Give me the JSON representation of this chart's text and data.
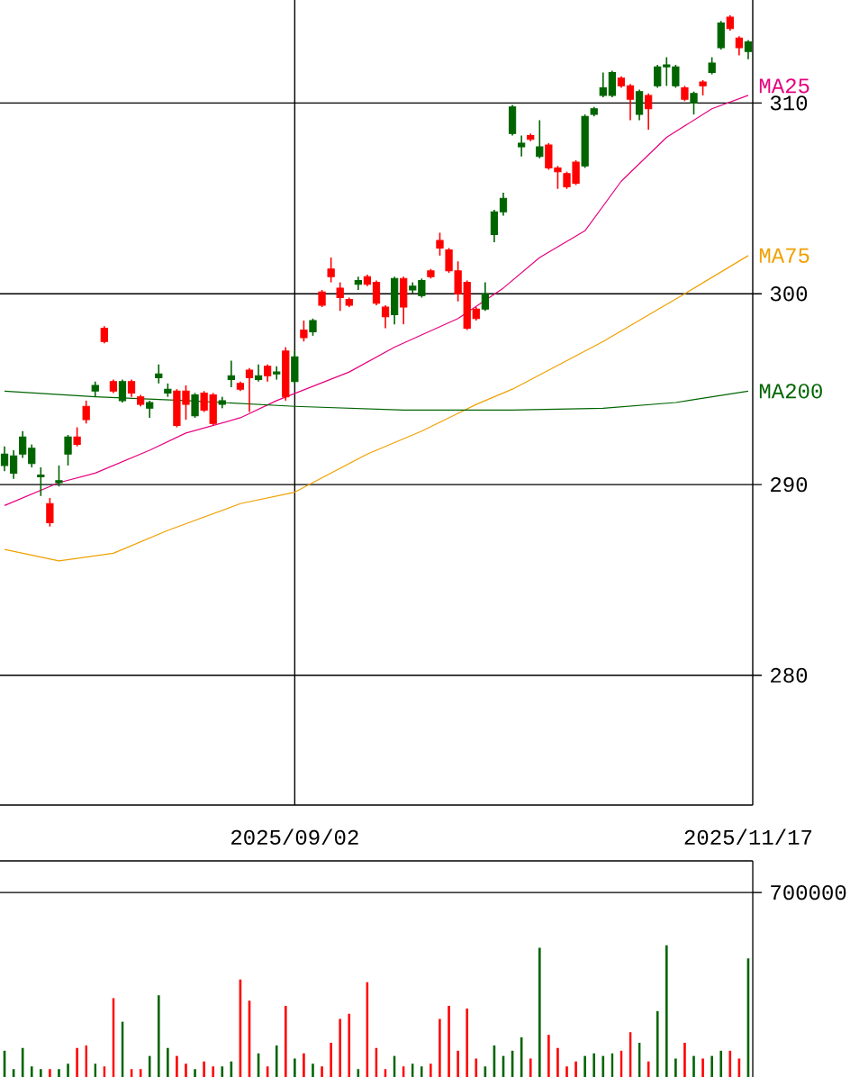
{
  "chart_data": [
    {
      "type": "candlestick",
      "categories": [
        null,
        null,
        null,
        null,
        null,
        null,
        null,
        null,
        null,
        null,
        null,
        null,
        null,
        null,
        null,
        null,
        null,
        null,
        null,
        null,
        null,
        null,
        null,
        null,
        null,
        null,
        null,
        null,
        null,
        null,
        null,
        null,
        "2025/09/02",
        null,
        null,
        null,
        null,
        null,
        null,
        null,
        null,
        null,
        null,
        null,
        null,
        null,
        null,
        null,
        null,
        null,
        null,
        null,
        null,
        null,
        null,
        null,
        null,
        null,
        null,
        null,
        null,
        null,
        null,
        null,
        null,
        null,
        null,
        null,
        null,
        null,
        null,
        null,
        null,
        null,
        null,
        null,
        null,
        null,
        null,
        null,
        null,
        null,
        "2025/11/17"
      ],
      "ohlc": [
        [
          291.6,
          292.0,
          290.7,
          291.0
        ],
        [
          291.5,
          291.8,
          290.3,
          290.6
        ],
        [
          292.5,
          292.8,
          291.4,
          291.6
        ],
        [
          291.9,
          292.1,
          290.9,
          291.1
        ],
        [
          290.5,
          290.9,
          289.4,
          290.4
        ],
        [
          288.0,
          289.3,
          287.8,
          289.0
        ],
        [
          290.2,
          291.0,
          289.9,
          290.1
        ],
        [
          292.5,
          292.6,
          291.0,
          291.6
        ],
        [
          292.1,
          293.0,
          292.0,
          292.5
        ],
        [
          293.4,
          294.4,
          293.2,
          294.1
        ],
        [
          295.2,
          295.4,
          294.6,
          294.9
        ],
        [
          297.5,
          298.3,
          297.4,
          298.2
        ],
        [
          294.9,
          295.5,
          294.8,
          295.4
        ],
        [
          295.4,
          295.5,
          294.3,
          294.4
        ],
        [
          294.8,
          295.5,
          294.6,
          295.4
        ],
        [
          294.2,
          294.7,
          294.1,
          294.6
        ],
        [
          294.3,
          294.4,
          293.5,
          294.0
        ],
        [
          295.8,
          296.3,
          295.3,
          295.6
        ],
        [
          295.0,
          295.3,
          294.6,
          294.8
        ],
        [
          293.1,
          295.0,
          293.0,
          294.9
        ],
        [
          294.2,
          295.2,
          293.4,
          294.9
        ],
        [
          294.7,
          294.8,
          293.5,
          293.6
        ],
        [
          293.9,
          294.9,
          293.8,
          294.8
        ],
        [
          293.2,
          294.8,
          293.1,
          294.7
        ],
        [
          294.4,
          294.6,
          294.0,
          294.2
        ],
        [
          295.7,
          296.5,
          295.1,
          295.5
        ],
        [
          295.0,
          295.4,
          294.9,
          295.3
        ],
        [
          295.6,
          296.1,
          293.8,
          296.0
        ],
        [
          295.7,
          296.3,
          295.4,
          295.5
        ],
        [
          295.7,
          296.3,
          295.4,
          296.2
        ],
        [
          295.9,
          296.2,
          295.5,
          295.8
        ],
        [
          294.6,
          297.2,
          294.4,
          297.0
        ],
        [
          296.7,
          297.0,
          295.3,
          295.4
        ],
        [
          297.7,
          298.6,
          297.5,
          298.1
        ],
        [
          298.6,
          298.7,
          297.8,
          298.0
        ],
        [
          299.4,
          300.2,
          299.3,
          300.1
        ],
        [
          300.9,
          301.9,
          300.6,
          301.3
        ],
        [
          299.8,
          300.6,
          299.1,
          300.3
        ],
        [
          299.4,
          299.8,
          299.3,
          299.7
        ],
        [
          300.7,
          300.9,
          300.2,
          300.5
        ],
        [
          300.5,
          301.0,
          300.4,
          300.9
        ],
        [
          299.5,
          300.7,
          299.4,
          300.6
        ],
        [
          298.8,
          299.4,
          298.2,
          299.3
        ],
        [
          300.8,
          300.9,
          298.4,
          298.9
        ],
        [
          299.3,
          300.9,
          298.4,
          300.8
        ],
        [
          300.4,
          300.6,
          300.0,
          300.2
        ],
        [
          300.7,
          300.8,
          299.8,
          299.9
        ],
        [
          300.9,
          301.3,
          300.8,
          301.2
        ],
        [
          302.4,
          303.2,
          302.0,
          302.8
        ],
        [
          301.2,
          302.4,
          301.1,
          302.3
        ],
        [
          300.0,
          301.7,
          299.6,
          301.2
        ],
        [
          298.2,
          300.7,
          298.1,
          300.6
        ],
        [
          298.7,
          299.3,
          298.6,
          299.2
        ],
        [
          300.0,
          300.6,
          299.1,
          299.2
        ],
        [
          304.3,
          304.4,
          302.7,
          303.1
        ],
        [
          305.0,
          305.3,
          304.1,
          304.3
        ],
        [
          309.8,
          309.9,
          308.3,
          308.4
        ],
        [
          307.9,
          308.3,
          307.2,
          307.7
        ],
        [
          308.1,
          308.4,
          308.0,
          308.3
        ],
        [
          307.7,
          309.1,
          307.1,
          307.2
        ],
        [
          306.6,
          307.9,
          306.5,
          307.8
        ],
        [
          306.4,
          306.7,
          305.5,
          306.6
        ],
        [
          305.6,
          306.4,
          305.5,
          306.3
        ],
        [
          305.8,
          307.0,
          305.7,
          306.9
        ],
        [
          309.3,
          309.4,
          306.6,
          306.7
        ],
        [
          309.7,
          309.8,
          309.3,
          309.4
        ],
        [
          310.8,
          311.6,
          310.3,
          310.4
        ],
        [
          311.6,
          311.7,
          310.3,
          310.4
        ],
        [
          310.9,
          311.4,
          310.8,
          311.3
        ],
        [
          310.2,
          311.0,
          309.1,
          310.9
        ],
        [
          310.6,
          310.7,
          309.1,
          309.4
        ],
        [
          309.7,
          310.5,
          308.6,
          310.4
        ],
        [
          311.9,
          312.0,
          310.8,
          310.9
        ],
        [
          312.0,
          312.4,
          310.9,
          311.9
        ],
        [
          311.9,
          312.0,
          310.8,
          310.9
        ],
        [
          310.2,
          310.9,
          310.1,
          310.8
        ],
        [
          310.5,
          310.6,
          309.4,
          310.0
        ],
        [
          310.9,
          311.2,
          310.4,
          311.1
        ],
        [
          312.1,
          312.4,
          311.5,
          311.6
        ],
        [
          314.2,
          314.3,
          312.8,
          312.9
        ],
        [
          313.9,
          314.6,
          313.8,
          314.5
        ],
        [
          312.9,
          313.5,
          312.5,
          313.4
        ],
        [
          313.2,
          313.3,
          312.3,
          312.7
        ]
      ],
      "colors": [
        "#006400",
        "#006400",
        "#006400",
        "#006400",
        "#006400",
        "#ff0000",
        "#006400",
        "#006400",
        "#ff0000",
        "#ff0000",
        "#006400",
        "#ff0000",
        "#ff0000",
        "#006400",
        "#ff0000",
        "#ff0000",
        "#006400",
        "#006400",
        "#006400",
        "#ff0000",
        "#ff0000",
        "#006400",
        "#ff0000",
        "#ff0000",
        "#006400",
        "#006400",
        "#ff0000",
        "#ff0000",
        "#006400",
        "#ff0000",
        "#006400",
        "#ff0000",
        "#006400",
        "#ff0000",
        "#006400",
        "#ff0000",
        "#ff0000",
        "#ff0000",
        "#ff0000",
        "#006400",
        "#ff0000",
        "#ff0000",
        "#ff0000",
        "#006400",
        "#ff0000",
        "#006400",
        "#006400",
        "#ff0000",
        "#ff0000",
        "#ff0000",
        "#ff0000",
        "#ff0000",
        "#ff0000",
        "#006400",
        "#006400",
        "#006400",
        "#006400",
        "#006400",
        "#ff0000",
        "#006400",
        "#ff0000",
        "#ff0000",
        "#ff0000",
        "#ff0000",
        "#006400",
        "#006400",
        "#006400",
        "#006400",
        "#ff0000",
        "#ff0000",
        "#006400",
        "#ff0000",
        "#006400",
        "#006400",
        "#006400",
        "#ff0000",
        "#006400",
        "#ff0000",
        "#006400",
        "#006400",
        "#ff0000",
        "#ff0000",
        "#006400"
      ],
      "series": [
        {
          "type": "line",
          "name": "MA25",
          "color": "#e6007e",
          "values": [
            288.9,
            null,
            null,
            null,
            null,
            null,
            290.1,
            null,
            null,
            null,
            290.6,
            null,
            null,
            null,
            null,
            null,
            291.8,
            null,
            null,
            null,
            292.7,
            null,
            null,
            null,
            null,
            null,
            293.5,
            null,
            null,
            null,
            294.4,
            null,
            null,
            null,
            null,
            null,
            null,
            null,
            295.9,
            null,
            null,
            null,
            null,
            297.2,
            null,
            null,
            null,
            null,
            null,
            null,
            298.7,
            null,
            null,
            null,
            null,
            300.3,
            null,
            null,
            null,
            301.9,
            null,
            null,
            null,
            null,
            303.3,
            null,
            null,
            null,
            305.9,
            null,
            null,
            null,
            null,
            308.2,
            null,
            null,
            null,
            null,
            309.7,
            null,
            null,
            null,
            310.4
          ]
        },
        {
          "type": "line",
          "name": "MA75",
          "color": "#f0a000",
          "values": [
            286.6,
            null,
            null,
            null,
            null,
            null,
            286.0,
            null,
            null,
            null,
            null,
            null,
            286.4,
            null,
            null,
            null,
            null,
            null,
            287.6,
            null,
            null,
            null,
            null,
            null,
            null,
            null,
            289.0,
            null,
            null,
            null,
            null,
            null,
            289.6,
            null,
            null,
            null,
            null,
            null,
            null,
            null,
            291.6,
            null,
            null,
            null,
            null,
            null,
            292.8,
            null,
            null,
            null,
            null,
            null,
            294.2,
            null,
            null,
            null,
            295.0,
            null,
            null,
            null,
            null,
            null,
            null,
            null,
            null,
            null,
            297.5,
            null,
            null,
            null,
            null,
            null,
            null,
            null,
            null,
            300.0,
            null,
            null,
            null,
            null,
            null,
            null,
            302.0
          ]
        },
        {
          "type": "line",
          "name": "MA200",
          "color": "#006400",
          "values": [
            294.9,
            null,
            null,
            null,
            null,
            null,
            null,
            null,
            null,
            null,
            294.6,
            null,
            null,
            null,
            null,
            null,
            null,
            null,
            null,
            null,
            294.4,
            null,
            null,
            null,
            null,
            null,
            null,
            null,
            null,
            null,
            null,
            null,
            294.1,
            null,
            null,
            null,
            null,
            null,
            null,
            null,
            null,
            null,
            null,
            null,
            293.9,
            null,
            null,
            null,
            null,
            null,
            null,
            null,
            null,
            null,
            null,
            null,
            293.9,
            null,
            null,
            null,
            null,
            null,
            null,
            null,
            null,
            null,
            294.0,
            null,
            null,
            null,
            null,
            null,
            null,
            null,
            294.3,
            null,
            null,
            null,
            null,
            null,
            null,
            null,
            294.9
          ]
        }
      ],
      "marker": "none",
      "ylim": [
        273.2,
        315.4
      ],
      "yticks": [
        280,
        290,
        300,
        310
      ],
      "grid": true
    },
    {
      "type": "bar",
      "categories": [
        null,
        null,
        null,
        null,
        null,
        null,
        null,
        null,
        null,
        null,
        null,
        null,
        null,
        null,
        null,
        null,
        null,
        null,
        null,
        null,
        null,
        null,
        null,
        null,
        null,
        null,
        null,
        null,
        null,
        null,
        null,
        null,
        "2025/09/02",
        null,
        null,
        null,
        null,
        null,
        null,
        null,
        null,
        null,
        null,
        null,
        null,
        null,
        null,
        null,
        null,
        null,
        null,
        null,
        null,
        null,
        null,
        null,
        null,
        null,
        null,
        null,
        null,
        null,
        null,
        null,
        null,
        null,
        null,
        null,
        null,
        null,
        null,
        null,
        null,
        null,
        null,
        null,
        null,
        null,
        null,
        null,
        null,
        null,
        "2025/11/17"
      ],
      "values": [
        100000,
        30000,
        110000,
        40000,
        30000,
        30000,
        30000,
        50000,
        110000,
        120000,
        50000,
        40000,
        300000,
        210000,
        30000,
        30000,
        80000,
        310000,
        110000,
        80000,
        50000,
        30000,
        60000,
        40000,
        40000,
        60000,
        370000,
        290000,
        90000,
        40000,
        120000,
        270000,
        70000,
        90000,
        50000,
        40000,
        130000,
        220000,
        240000,
        30000,
        360000,
        110000,
        30000,
        80000,
        40000,
        50000,
        40000,
        50000,
        220000,
        270000,
        100000,
        260000,
        70000,
        40000,
        120000,
        80000,
        100000,
        150000,
        70000,
        490000,
        160000,
        110000,
        40000,
        60000,
        80000,
        90000,
        80000,
        90000,
        100000,
        170000,
        130000,
        60000,
        250000,
        500000,
        70000,
        130000,
        80000,
        70000,
        80000,
        100000,
        100000,
        70000,
        450000
      ],
      "colors": [
        "#006400",
        "#006400",
        "#006400",
        "#006400",
        "#006400",
        "#ff0000",
        "#006400",
        "#006400",
        "#ff0000",
        "#ff0000",
        "#006400",
        "#ff0000",
        "#ff0000",
        "#006400",
        "#ff0000",
        "#ff0000",
        "#006400",
        "#006400",
        "#006400",
        "#ff0000",
        "#ff0000",
        "#006400",
        "#ff0000",
        "#ff0000",
        "#006400",
        "#006400",
        "#ff0000",
        "#ff0000",
        "#006400",
        "#ff0000",
        "#006400",
        "#ff0000",
        "#006400",
        "#ff0000",
        "#006400",
        "#ff0000",
        "#ff0000",
        "#ff0000",
        "#ff0000",
        "#006400",
        "#ff0000",
        "#ff0000",
        "#ff0000",
        "#006400",
        "#ff0000",
        "#006400",
        "#006400",
        "#ff0000",
        "#ff0000",
        "#ff0000",
        "#ff0000",
        "#ff0000",
        "#ff0000",
        "#006400",
        "#006400",
        "#006400",
        "#006400",
        "#006400",
        "#ff0000",
        "#006400",
        "#ff0000",
        "#ff0000",
        "#ff0000",
        "#ff0000",
        "#006400",
        "#006400",
        "#006400",
        "#006400",
        "#ff0000",
        "#ff0000",
        "#006400",
        "#ff0000",
        "#006400",
        "#006400",
        "#006400",
        "#ff0000",
        "#006400",
        "#ff0000",
        "#006400",
        "#006400",
        "#ff0000",
        "#ff0000",
        "#006400"
      ],
      "ylim": [
        0,
        820000
      ],
      "yticks": [
        700000
      ],
      "grid": "y",
      "tick_labels": "y"
    }
  ]
}
